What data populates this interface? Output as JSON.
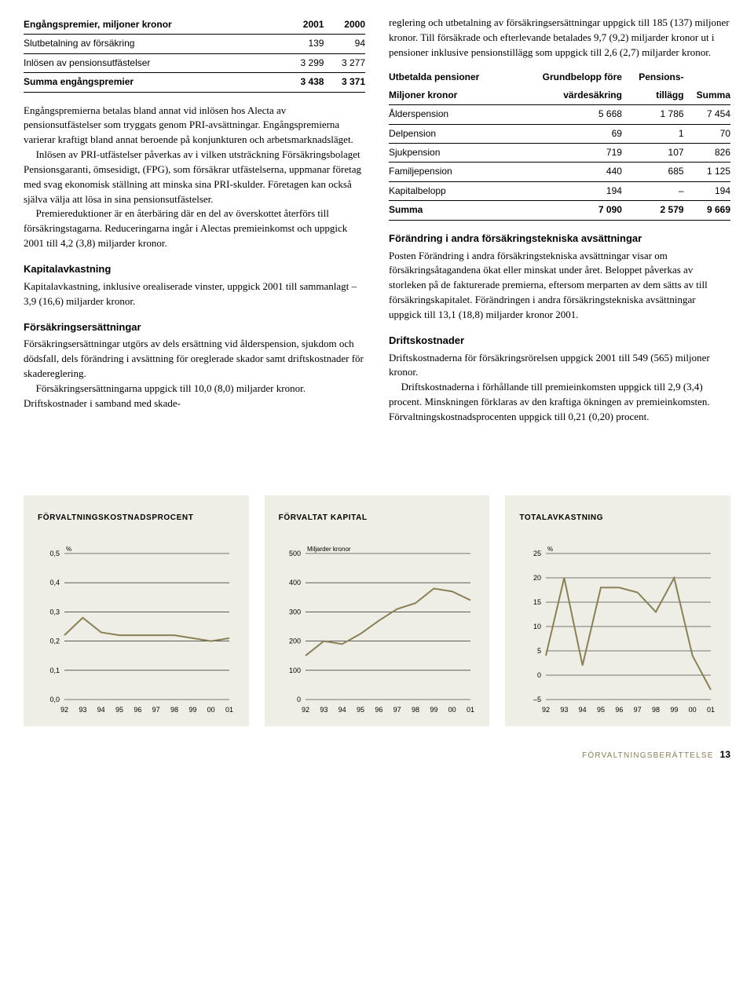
{
  "left": {
    "table1": {
      "header": [
        "Engångspremier, miljoner kronor",
        "2001",
        "2000"
      ],
      "rows": [
        [
          "Slutbetalning av försäkring",
          "139",
          "94"
        ],
        [
          "Inlösen av pensionsutfästelser",
          "3 299",
          "3 277"
        ]
      ],
      "sum": [
        "Summa engångspremier",
        "3 438",
        "3 371"
      ]
    },
    "p1": "Engångspremierna betalas bland annat vid inlösen hos Alecta av pensionsutfästelser som tryggats genom PRI-avsättningar. Engångspremierna varierar kraftigt bland annat beroende på konjunkturen och arbetsmarknadsläget.",
    "p2": "Inlösen av PRI-utfästelser påverkas av i vilken utsträckning Försäkringsbolaget Pensionsgaranti, ömsesidigt, (FPG), som försäkrar utfästelserna, uppmanar företag med svag ekonomisk ställning att minska sina PRI-skulder. Företagen kan också själva välja att lösa in sina pensionsutfästelser.",
    "p3": "Premiereduktioner är en återbäring där en del av överskottet återförs till försäkringstagarna. Reduceringarna ingår i Alectas premieinkomst och uppgick 2001 till 4,2 (3,8) miljarder kronor.",
    "h_kap": "Kapitalavkastning",
    "p_kap": "Kapitalavkastning, inklusive orealiserade vinster, uppgick 2001 till sammanlagt –3,9 (16,6) miljarder kronor.",
    "h_fe": "Försäkringsersättningar",
    "p_fe": "Försäkringsersättningar utgörs av dels ersättning vid ålderspension, sjukdom och dödsfall, dels förändring i avsättning för oreglerade skador samt driftskostnader för skadereglering.",
    "p_fe2": "Försäkringsersättningarna uppgick till 10,0 (8,0) miljarder kronor. Driftskostnader i samband med skade-"
  },
  "right": {
    "p_top1": "reglering och utbetalning av försäkringsersättningar uppgick till 185 (137) miljoner kronor. Till försäkrade och efterlevande betalades 9,7 (9,2) miljarder kronor ut i pensioner inklusive pensionstillägg som uppgick till 2,6 (2,7) miljarder kronor.",
    "table2": {
      "header1": [
        "Utbetalda pensioner",
        "Grundbelopp före",
        "Pensions-",
        ""
      ],
      "header2": [
        "Miljoner kronor",
        "värdesäkring",
        "tillägg",
        "Summa"
      ],
      "rows": [
        [
          "Ålderspension",
          "5 668",
          "1 786",
          "7 454"
        ],
        [
          "Delpension",
          "69",
          "1",
          "70"
        ],
        [
          "Sjukpension",
          "719",
          "107",
          "826"
        ],
        [
          "Familjepension",
          "440",
          "685",
          "1 125"
        ],
        [
          "Kapitalbelopp",
          "194",
          "–",
          "194"
        ]
      ],
      "sum": [
        "Summa",
        "7 090",
        "2 579",
        "9 669"
      ]
    },
    "h_for": "Förändring i andra försäkringstekniska avsättningar",
    "p_for": "Posten Förändring i andra försäkringstekniska avsättningar visar om försäkringsåtagandena ökat eller minskat under året. Beloppet påverkas av storleken på de fakturerade premierna, eftersom merparten av dem sätts av till försäkringskapitalet. Förändringen i andra försäkringstekniska avsättningar uppgick till 13,1 (18,8) miljarder kronor 2001.",
    "h_drift": "Driftskostnader",
    "p_drift": "Driftskostnaderna för försäkringsrörelsen uppgick 2001 till 549 (565) miljoner kronor.",
    "p_drift2": "Driftskostnaderna i förhållande till premieinkomsten uppgick till 2,9 (3,4) procent. Minskningen förklaras av den kraftiga ökningen av premieinkomsten. Förvaltningskostnadsprocenten uppgick till 0,21 (0,20) procent."
  },
  "charts": {
    "panel_bg": "#efeee6",
    "line_color": "#8a8055",
    "axis_color": "#000000",
    "grid_color": "#000000",
    "label_font_size": 9,
    "categories": [
      "92",
      "93",
      "94",
      "95",
      "96",
      "97",
      "98",
      "99",
      "00",
      "01"
    ],
    "chart1": {
      "title": "FÖRVALTNINGSKOSTNADSPROCENT",
      "unit": "%",
      "ymin": 0.0,
      "ymax": 0.5,
      "ystep": 0.1,
      "values": [
        0.22,
        0.28,
        0.23,
        0.22,
        0.22,
        0.22,
        0.22,
        0.21,
        0.2,
        0.21
      ],
      "ylabels": [
        "0,0",
        "0,1",
        "0,2",
        "0,3",
        "0,4",
        "0,5"
      ]
    },
    "chart2": {
      "title": "FÖRVALTAT KAPITAL",
      "unit": "Miljarder kronor",
      "ymin": 0,
      "ymax": 500,
      "ystep": 100,
      "values": [
        150,
        200,
        190,
        225,
        270,
        310,
        330,
        380,
        370,
        340
      ],
      "ylabels": [
        "0",
        "100",
        "200",
        "300",
        "400",
        "500"
      ]
    },
    "chart3": {
      "title": "TOTALAVKASTNING",
      "unit": "%",
      "ymin": -5,
      "ymax": 25,
      "ystep": 5,
      "values": [
        4,
        20,
        2,
        18,
        18,
        17,
        13,
        20,
        4,
        -3
      ],
      "ylabels": [
        "–5",
        "0",
        "5",
        "10",
        "15",
        "20",
        "25"
      ]
    }
  },
  "footer": {
    "text": "FÖRVALTNINGSBERÄTTELSE",
    "page": "13"
  }
}
